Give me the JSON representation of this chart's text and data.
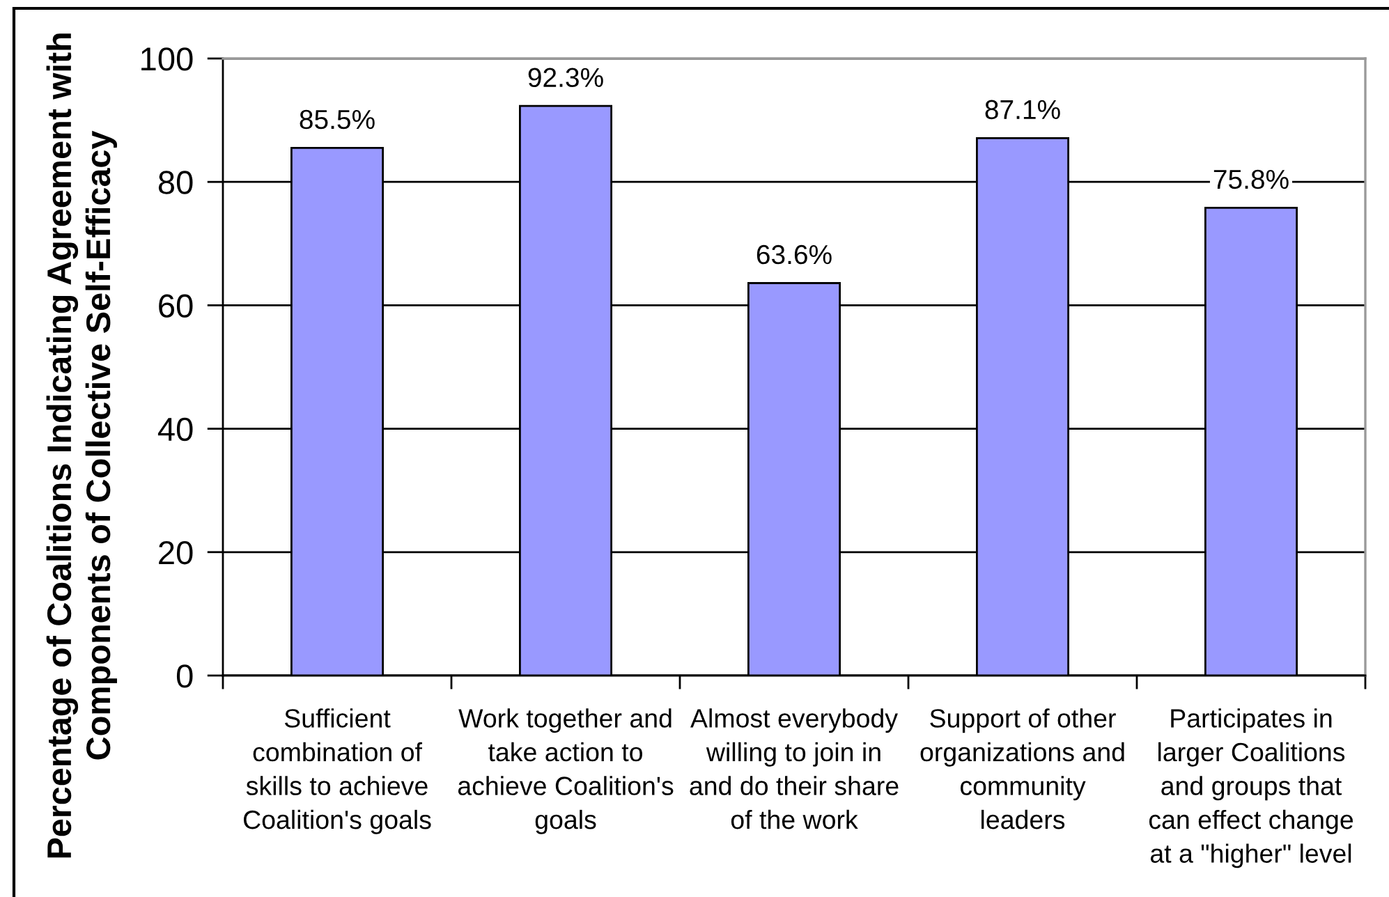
{
  "chart_data": {
    "type": "bar",
    "ylabel": "Percentage of Coalitions Indicating Agreement with\nComponents of Collective Self-Efficacy",
    "categories": [
      "Sufficient\ncombination of\nskills to achieve\nCoalition's goals",
      "Work together and\ntake action to\nachieve Coalition's\ngoals",
      "Almost everybody\nwilling to join in\nand do their share\nof the work",
      "Support of other\norganizations and\ncommunity\nleaders",
      "Participates in\nlarger Coalitions\nand groups that\ncan effect change\nat a \"higher\" level"
    ],
    "values": [
      85.5,
      92.3,
      63.6,
      87.1,
      75.8
    ],
    "color": "#9999ff",
    "value_labels": [
      "85.5%",
      "92.3%",
      "63.6%",
      "87.1%",
      "75.8%"
    ],
    "ylim": [
      0,
      100
    ],
    "yticks": [
      0,
      20,
      40,
      60,
      80,
      100
    ],
    "grid": "y",
    "legend": false
  }
}
